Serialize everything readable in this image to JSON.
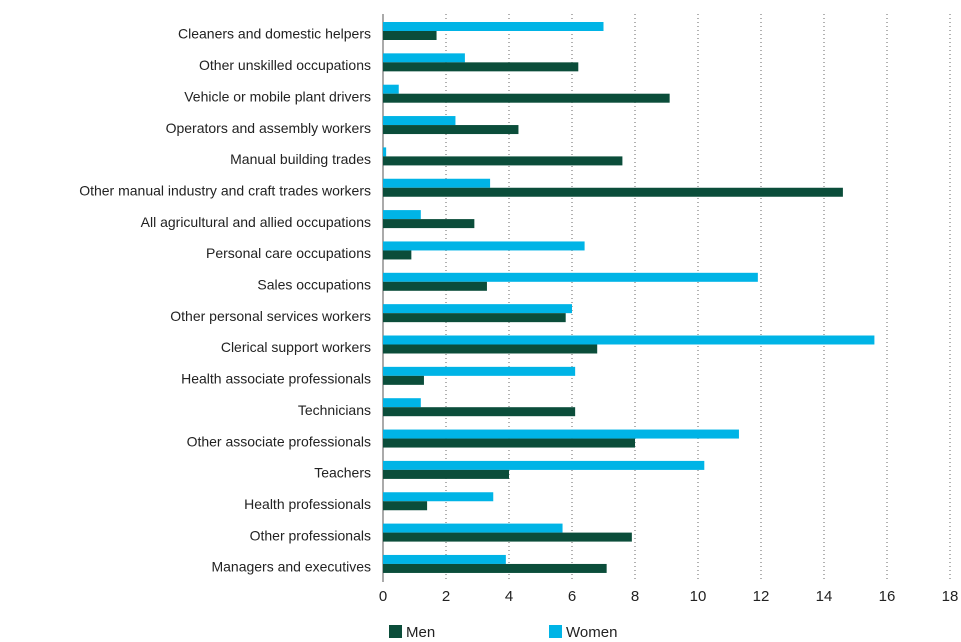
{
  "chart_data": {
    "type": "barh",
    "categories": [
      "Cleaners and domestic helpers",
      "Other unskilled occupations",
      "Vehicle or mobile plant drivers",
      "Operators and assembly workers",
      "Manual building trades",
      "Other manual industry and craft trades workers",
      "All agricultural and allied occupations",
      "Personal care occupations",
      "Sales occupations",
      "Other personal services workers",
      "Clerical support workers",
      "Health associate professionals",
      "Technicians",
      "Other associate professionals",
      "Teachers",
      "Health professionals",
      "Other professionals",
      "Managers and executives"
    ],
    "series": [
      {
        "name": "Women",
        "color": "#00b4e6",
        "values": [
          7.0,
          2.6,
          0.5,
          2.3,
          0.1,
          3.4,
          1.2,
          6.4,
          11.9,
          6.0,
          15.6,
          6.1,
          1.2,
          11.3,
          10.2,
          3.5,
          5.7,
          3.9
        ]
      },
      {
        "name": "Men",
        "color": "#0b4d3a",
        "values": [
          1.7,
          6.2,
          9.1,
          4.3,
          7.6,
          14.6,
          2.9,
          0.9,
          3.3,
          5.8,
          6.8,
          1.3,
          6.1,
          8.0,
          4.0,
          1.4,
          7.9,
          7.1
        ]
      }
    ],
    "xlim": [
      0,
      18
    ],
    "xticks": [
      0,
      2,
      4,
      6,
      8,
      10,
      12,
      14,
      16,
      18
    ],
    "grid": true
  }
}
